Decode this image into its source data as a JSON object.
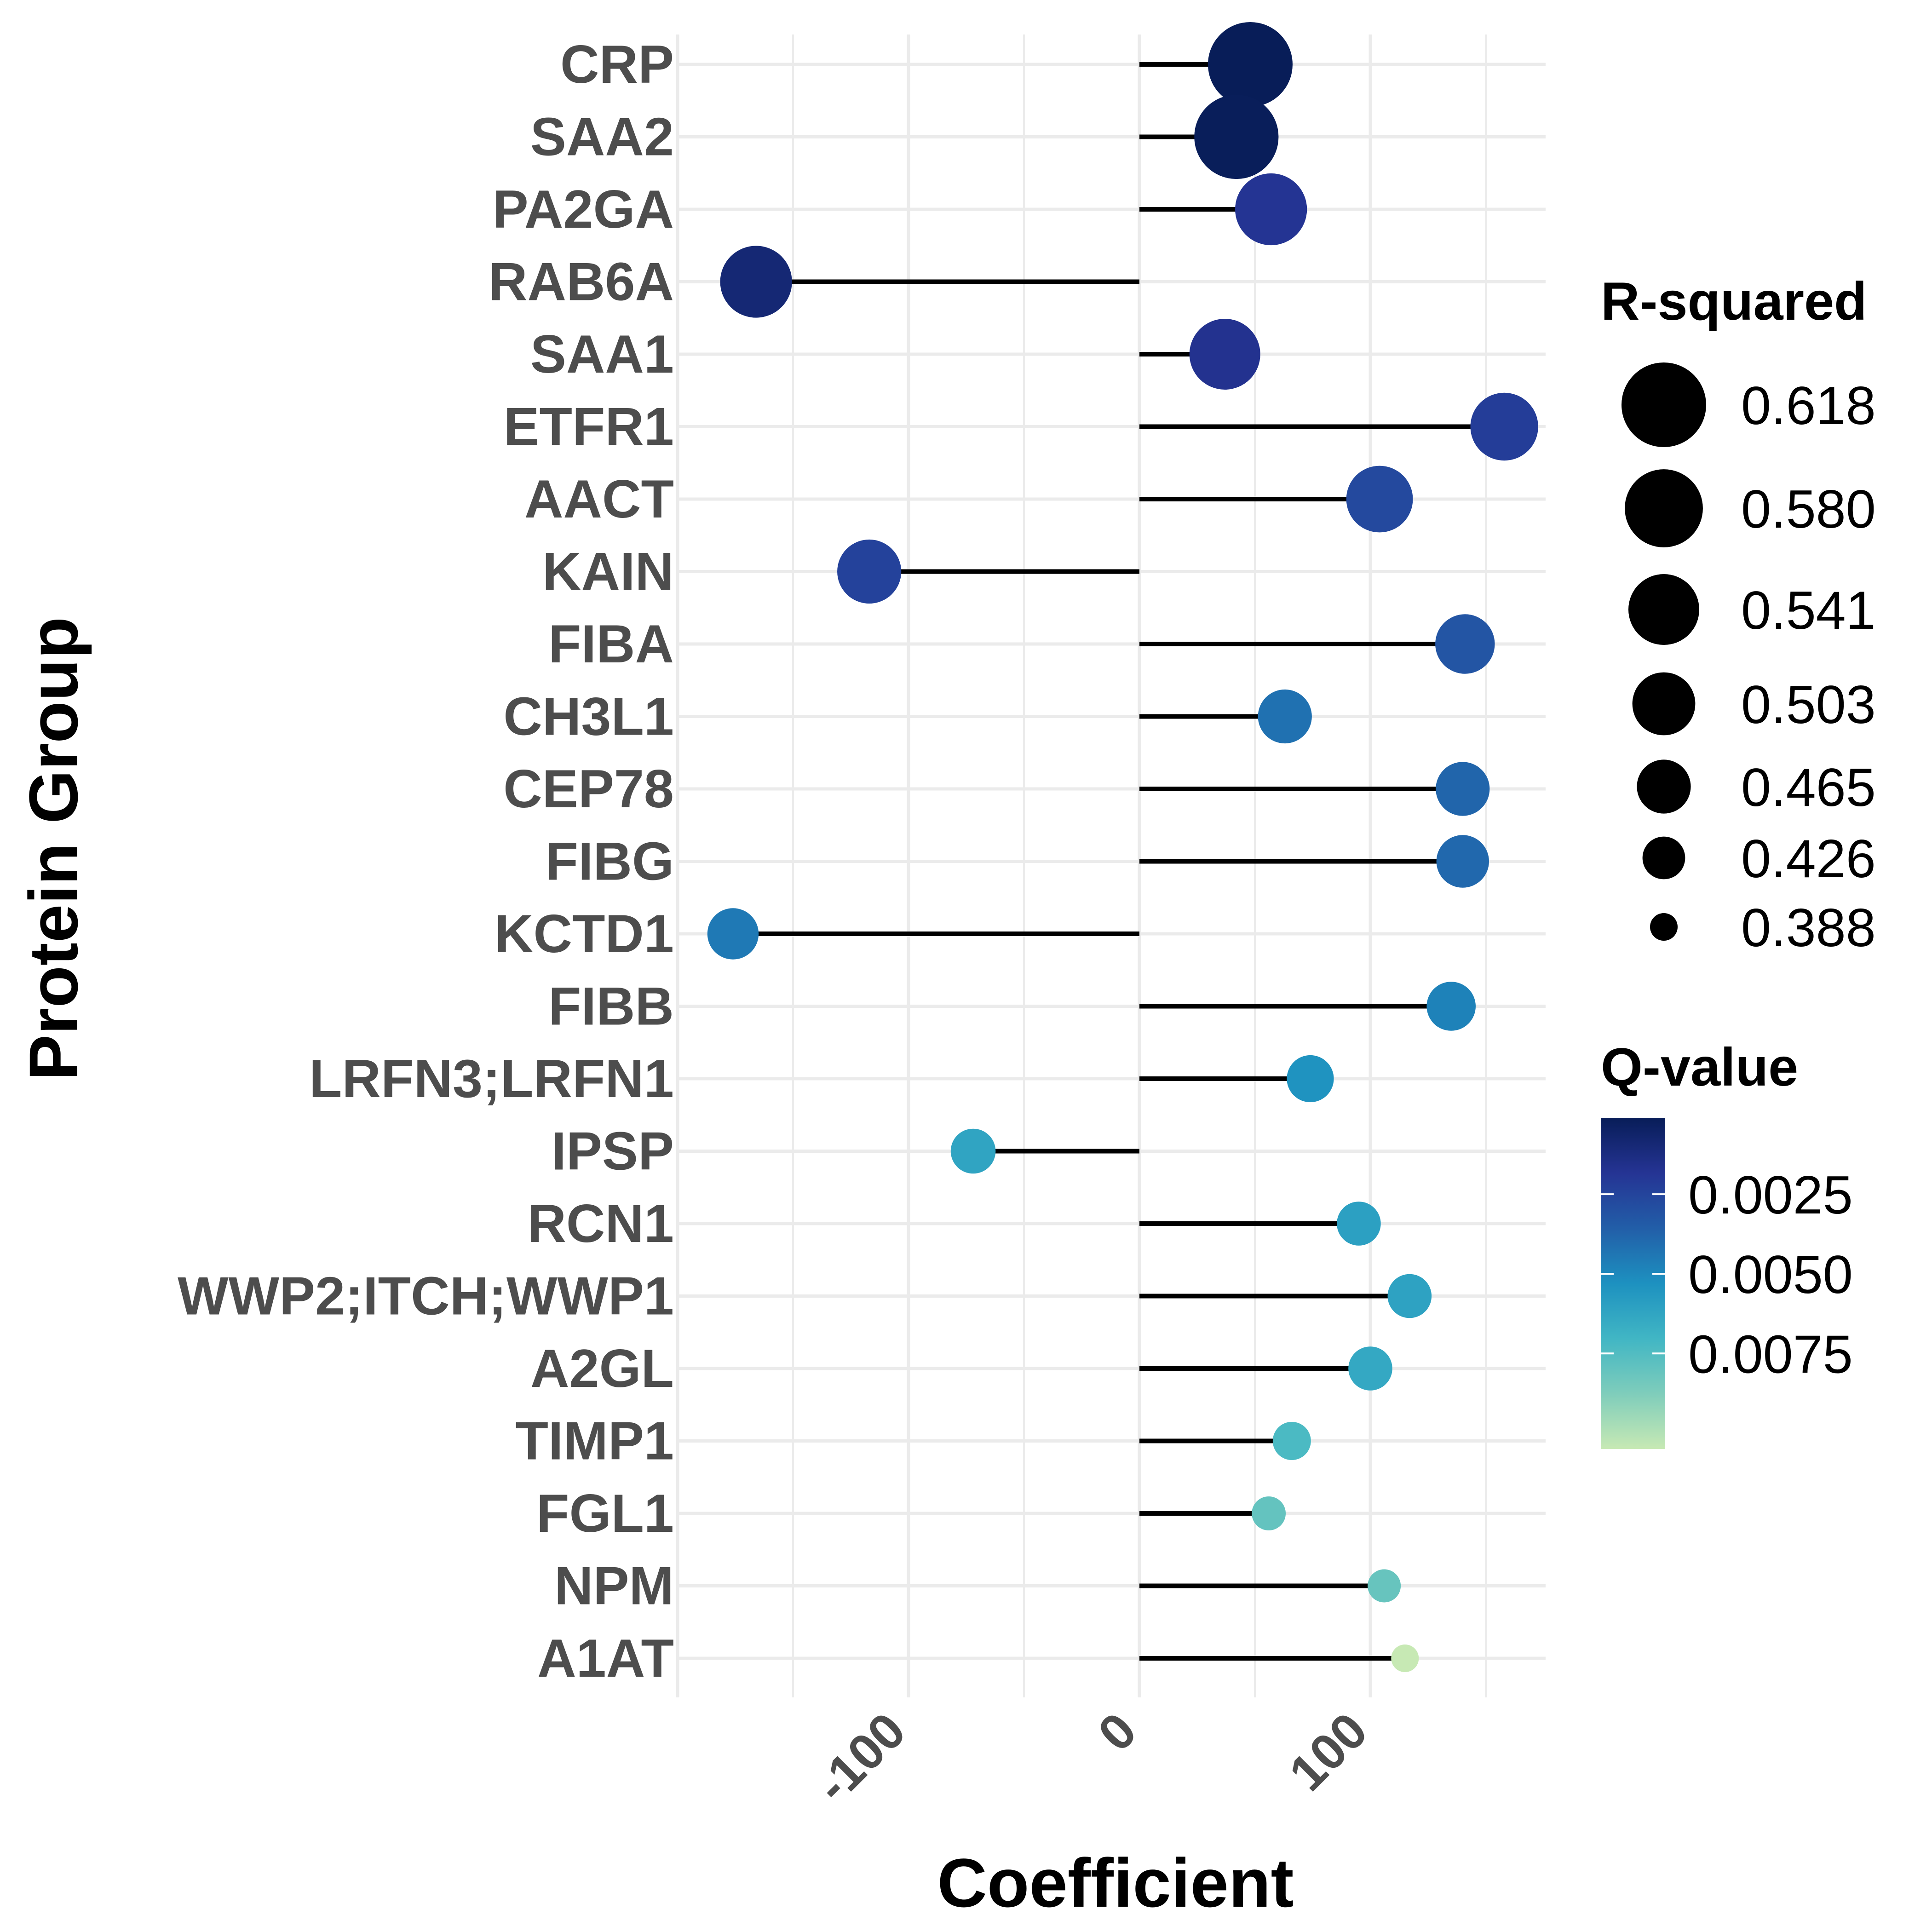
{
  "chart_data": {
    "type": "lollipop",
    "xlabel": "Coefficient",
    "ylabel": "Protein Group",
    "xlim": [
      -200,
      175
    ],
    "x_ticks": [
      -100,
      0,
      100
    ],
    "grid": true,
    "categories": [
      "CRP",
      "SAA2",
      "PA2GA",
      "RAB6A",
      "SAA1",
      "ETFR1",
      "AACT",
      "KAIN",
      "FIBA",
      "CH3L1",
      "CEP78",
      "FIBG",
      "KCTD1",
      "FIBB",
      "LRFN3;LRFN1",
      "IPSP",
      "RCN1",
      "WWP2;ITCH;WWP1",
      "A2GL",
      "TIMP1",
      "FGL1",
      "NPM",
      "A1AT"
    ],
    "coefficient": [
      48,
      42,
      57,
      -166,
      37,
      158,
      104,
      -117,
      141,
      63,
      140,
      140,
      -176,
      135,
      74,
      -72,
      95,
      117,
      100,
      66,
      56,
      106,
      115
    ],
    "r_squared": [
      0.62,
      0.616,
      0.546,
      0.546,
      0.541,
      0.526,
      0.52,
      0.508,
      0.488,
      0.465,
      0.465,
      0.46,
      0.455,
      0.447,
      0.44,
      0.433,
      0.43,
      0.43,
      0.43,
      0.413,
      0.402,
      0.4,
      0.388
    ],
    "q_value": [
      0.0001,
      0.00015,
      0.0018,
      0.0009,
      0.0017,
      0.0022,
      0.0027,
      0.0024,
      0.0032,
      0.0042,
      0.0038,
      0.0039,
      0.0045,
      0.0048,
      0.0054,
      0.0062,
      0.006,
      0.0061,
      0.0064,
      0.0073,
      0.008,
      0.0081,
      0.0105
    ],
    "size_legend": {
      "title": "R-squared",
      "labels": [
        "0.618",
        "0.580",
        "0.541",
        "0.503",
        "0.465",
        "0.426",
        "0.388"
      ],
      "values": [
        0.618,
        0.58,
        0.541,
        0.503,
        0.465,
        0.426,
        0.388
      ]
    },
    "color_legend": {
      "title": "Q-value",
      "labels": [
        "0.0025",
        "0.0050",
        "0.0075"
      ],
      "values": [
        0.0025,
        0.005,
        0.0075
      ],
      "range": [
        0.0001,
        0.0105
      ],
      "colors": [
        "#081d58",
        "#253494",
        "#225ea8",
        "#1d91c0",
        "#41b6c4",
        "#7fcdbb",
        "#c7e9b4"
      ]
    },
    "stem_color": "#000000",
    "grid_color": "#ebebeb"
  }
}
